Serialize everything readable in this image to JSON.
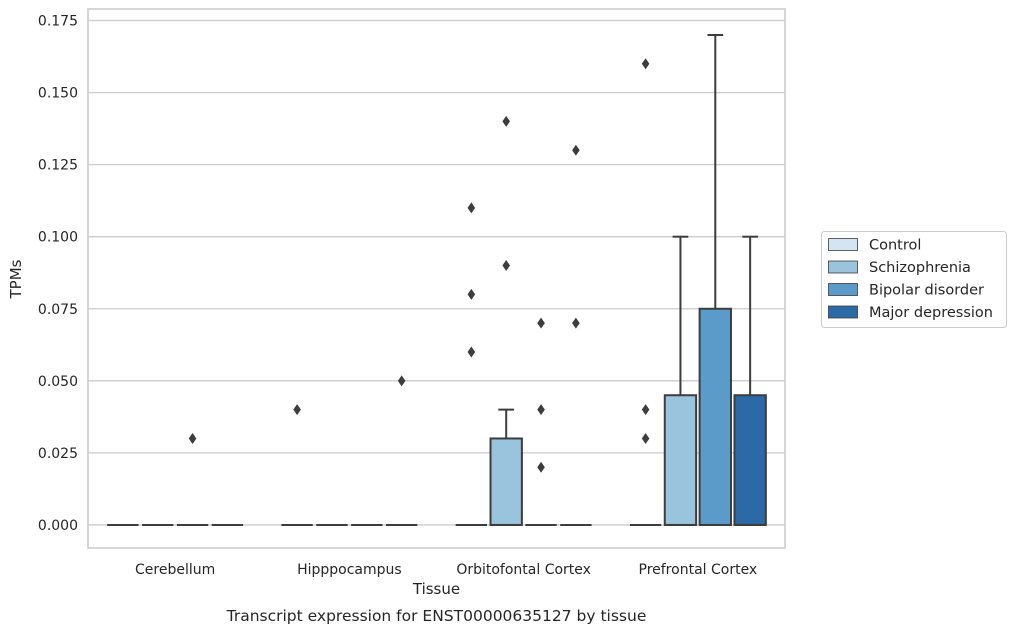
{
  "chart_data": {
    "type": "box",
    "caption": "Transcript expression for ENST00000635127 by tissue",
    "xlabel": "Tissue",
    "ylabel": "TPMs",
    "ylim": [
      -0.008,
      0.179
    ],
    "yticks": [
      0.0,
      0.025,
      0.05,
      0.075,
      0.1,
      0.125,
      0.15,
      0.175
    ],
    "ytick_labels": [
      "0.000",
      "0.025",
      "0.050",
      "0.075",
      "0.100",
      "0.125",
      "0.150",
      "0.175"
    ],
    "grid": "horizontal",
    "legend_position": "right",
    "categories": [
      "Cerebellum",
      "Hipppocampus",
      "Orbitofontal Cortex",
      "Prefrontal Cortex"
    ],
    "series": [
      {
        "name": "Control",
        "color": "#d4e4f2",
        "boxes": [
          {
            "category": "Cerebellum",
            "q1": 0,
            "median": 0,
            "q3": 0,
            "whisker_low": 0,
            "whisker_high": 0,
            "outliers": []
          },
          {
            "category": "Hipppocampus",
            "q1": 0,
            "median": 0,
            "q3": 0,
            "whisker_low": 0,
            "whisker_high": 0,
            "outliers": [
              0.04
            ]
          },
          {
            "category": "Orbitofontal Cortex",
            "q1": 0,
            "median": 0,
            "q3": 0,
            "whisker_low": 0,
            "whisker_high": 0,
            "outliers": [
              0.11,
              0.08,
              0.06
            ]
          },
          {
            "category": "Prefrontal Cortex",
            "q1": 0,
            "median": 0,
            "q3": 0,
            "whisker_low": 0,
            "whisker_high": 0,
            "outliers": [
              0.16,
              0.04,
              0.03
            ]
          }
        ]
      },
      {
        "name": "Schizophrenia",
        "color": "#9ac3dd",
        "boxes": [
          {
            "category": "Cerebellum",
            "q1": 0,
            "median": 0,
            "q3": 0,
            "whisker_low": 0,
            "whisker_high": 0,
            "outliers": []
          },
          {
            "category": "Hipppocampus",
            "q1": 0,
            "median": 0,
            "q3": 0,
            "whisker_low": 0,
            "whisker_high": 0,
            "outliers": []
          },
          {
            "category": "Orbitofontal Cortex",
            "q1": 0,
            "median": 0,
            "q3": 0.03,
            "whisker_low": 0,
            "whisker_high": 0.04,
            "outliers": [
              0.14,
              0.09
            ]
          },
          {
            "category": "Prefrontal Cortex",
            "q1": 0,
            "median": 0,
            "q3": 0.045,
            "whisker_low": 0,
            "whisker_high": 0.1,
            "outliers": []
          }
        ]
      },
      {
        "name": "Bipolar disorder",
        "color": "#5b9bc9",
        "boxes": [
          {
            "category": "Cerebellum",
            "q1": 0,
            "median": 0,
            "q3": 0,
            "whisker_low": 0,
            "whisker_high": 0,
            "outliers": [
              0.03
            ]
          },
          {
            "category": "Hipppocampus",
            "q1": 0,
            "median": 0,
            "q3": 0,
            "whisker_low": 0,
            "whisker_high": 0,
            "outliers": []
          },
          {
            "category": "Orbitofontal Cortex",
            "q1": 0,
            "median": 0,
            "q3": 0,
            "whisker_low": 0,
            "whisker_high": 0,
            "outliers": [
              0.07,
              0.04,
              0.02
            ]
          },
          {
            "category": "Prefrontal Cortex",
            "q1": 0,
            "median": 0,
            "q3": 0.075,
            "whisker_low": 0,
            "whisker_high": 0.17,
            "outliers": []
          }
        ]
      },
      {
        "name": "Major depression",
        "color": "#2b6aa6",
        "boxes": [
          {
            "category": "Cerebellum",
            "q1": 0,
            "median": 0,
            "q3": 0,
            "whisker_low": 0,
            "whisker_high": 0,
            "outliers": []
          },
          {
            "category": "Hipppocampus",
            "q1": 0,
            "median": 0,
            "q3": 0,
            "whisker_low": 0,
            "whisker_high": 0,
            "outliers": [
              0.05
            ]
          },
          {
            "category": "Orbitofontal Cortex",
            "q1": 0,
            "median": 0,
            "q3": 0,
            "whisker_low": 0,
            "whisker_high": 0,
            "outliers": [
              0.13,
              0.07
            ]
          },
          {
            "category": "Prefrontal Cortex",
            "q1": 0,
            "median": 0,
            "q3": 0.045,
            "whisker_low": 0,
            "whisker_high": 0.1,
            "outliers": []
          }
        ]
      }
    ]
  }
}
